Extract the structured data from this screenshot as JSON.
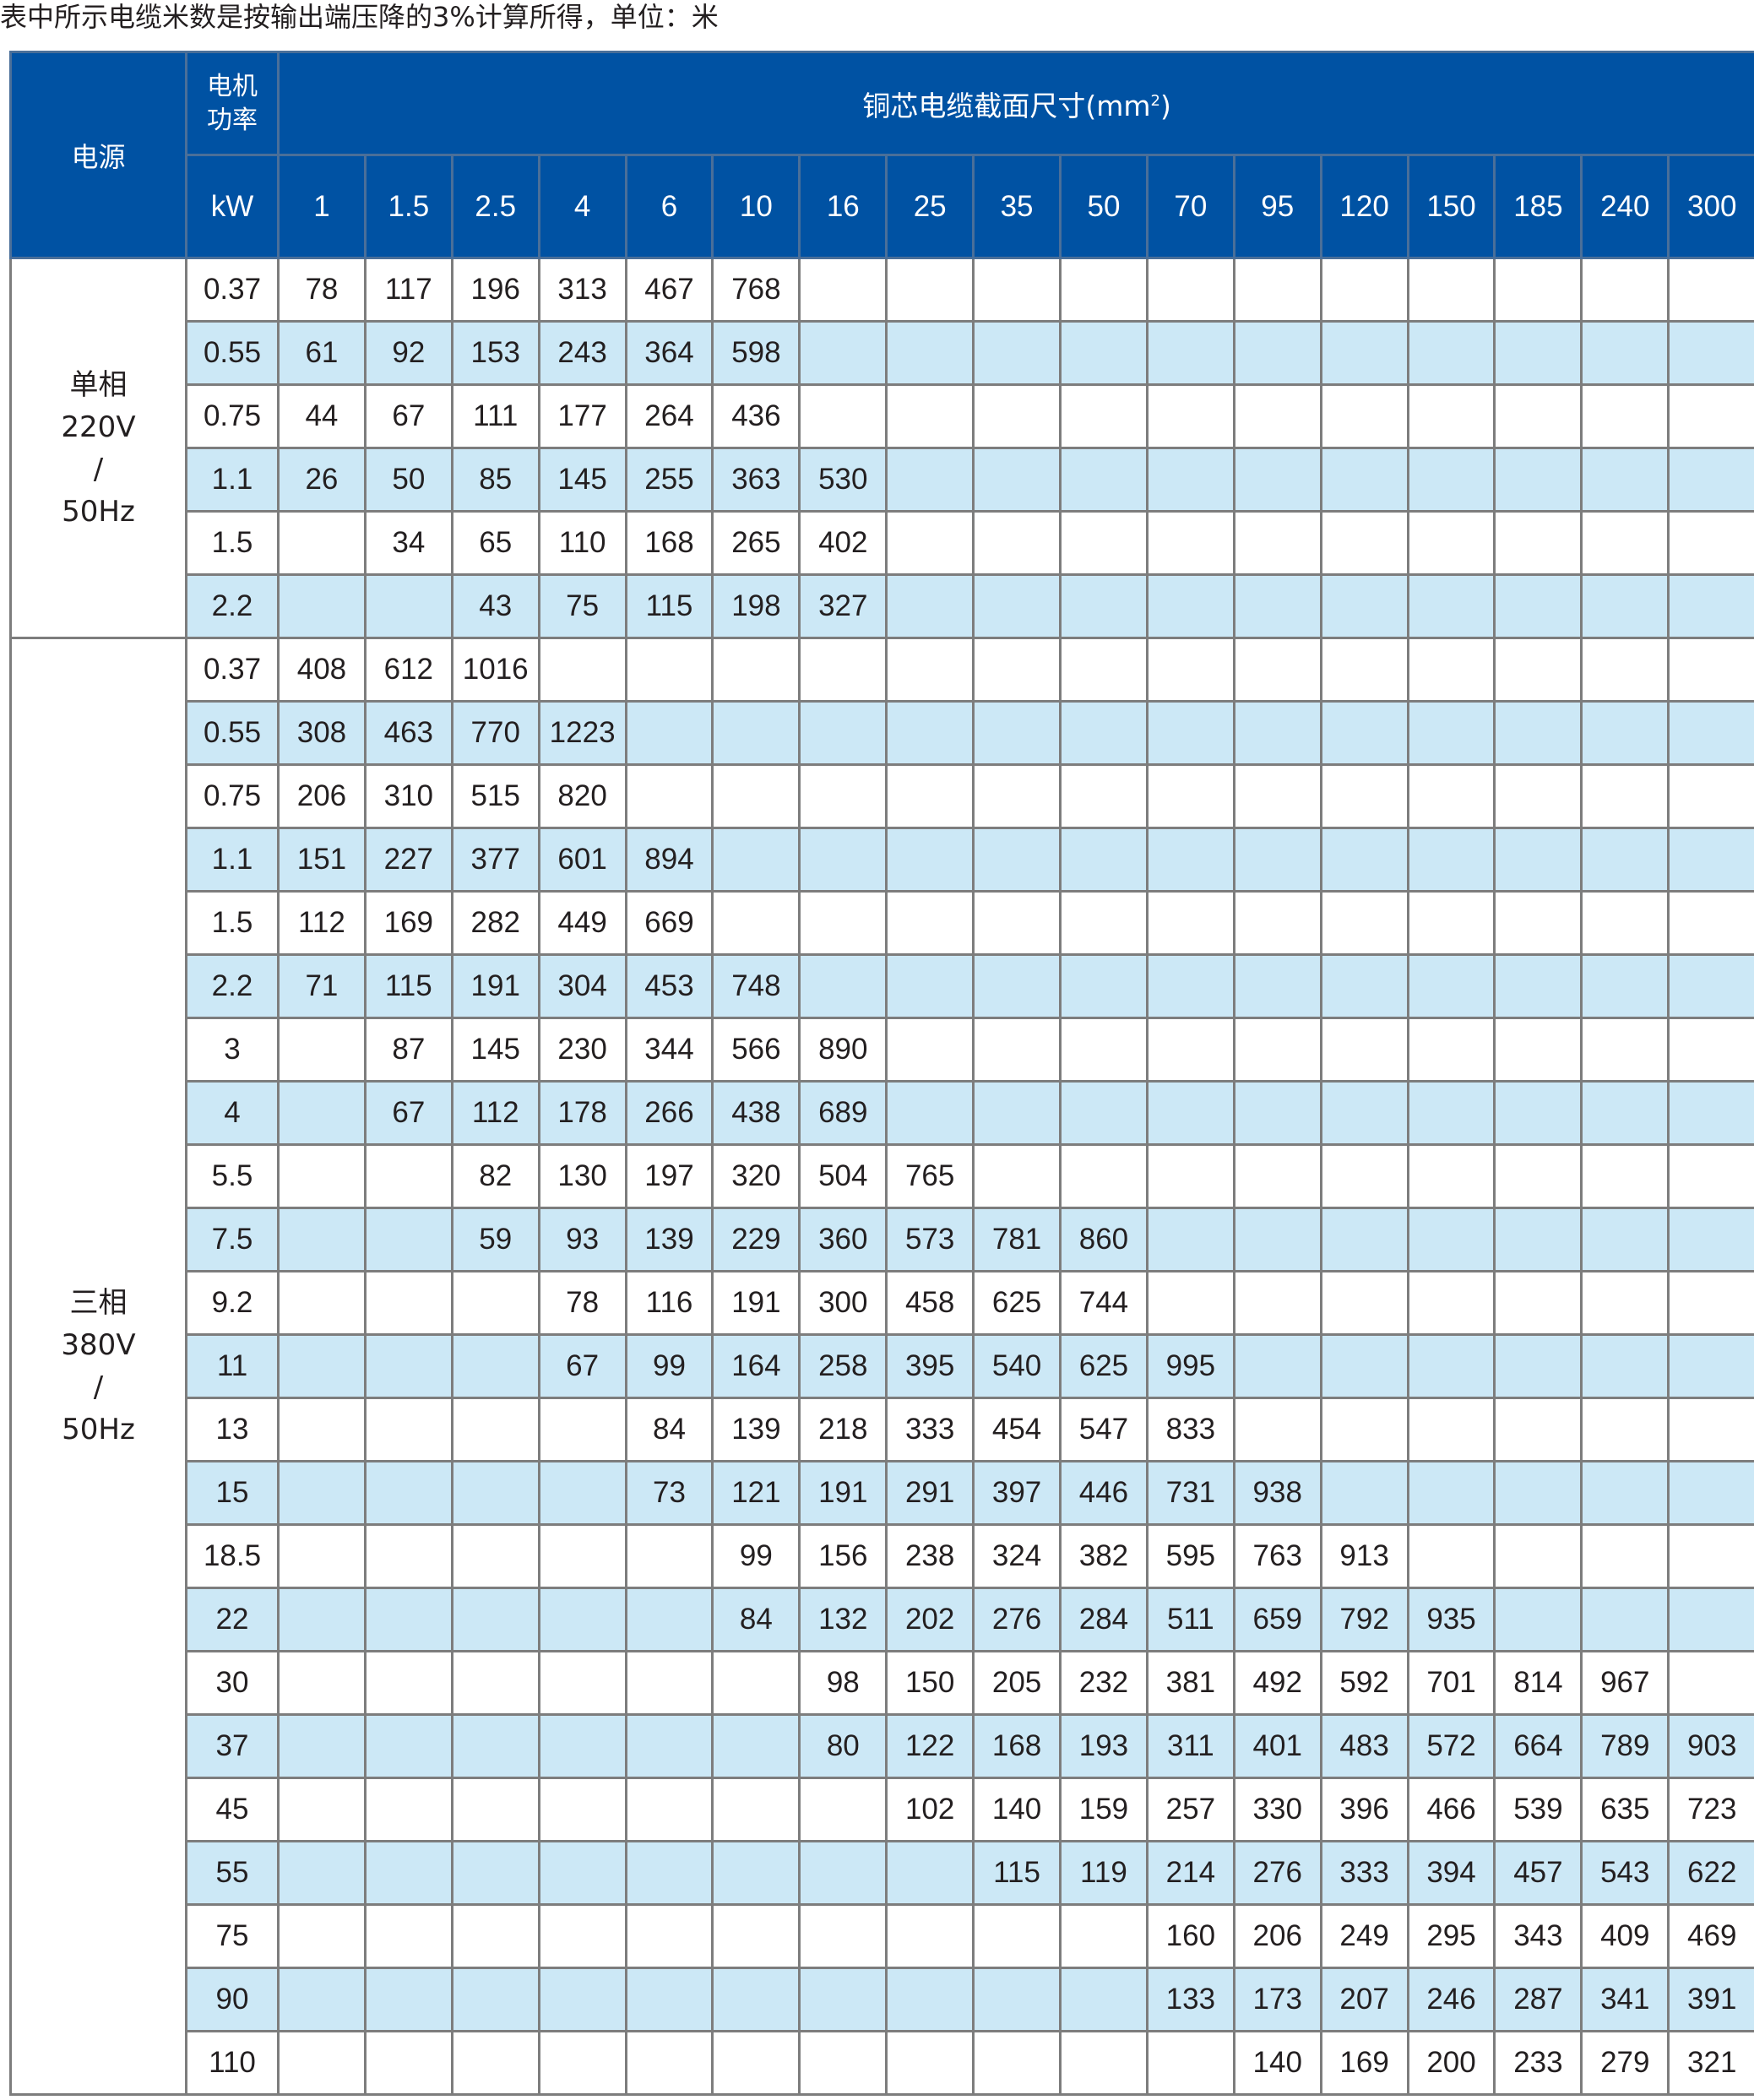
{
  "caption": "表中所示电缆米数是按输出端压降的3%计算所得，单位：米",
  "colors": {
    "header_bg": "#0052a3",
    "alt_row_bg": "#cce8f6",
    "border": "#7d7d7d"
  },
  "header": {
    "power_source": "电源",
    "motor_power": [
      "电机",
      "功率"
    ],
    "cross_section": "铜芯电缆截面尺寸(mm",
    "cross_section_sup": "2",
    "cross_section_close": ")",
    "kw": "kW",
    "sizes": [
      "1",
      "1.5",
      "2.5",
      "4",
      "6",
      "10",
      "16",
      "25",
      "35",
      "50",
      "70",
      "95",
      "120",
      "150",
      "185",
      "240",
      "300"
    ]
  },
  "groups": [
    {
      "label": [
        "单相",
        "220V",
        "/",
        "50Hz"
      ],
      "rows": [
        {
          "kw": "0.37",
          "v": [
            "78",
            "117",
            "196",
            "313",
            "467",
            "768",
            "",
            "",
            "",
            "",
            "",
            "",
            "",
            "",
            "",
            "",
            ""
          ]
        },
        {
          "kw": "0.55",
          "v": [
            "61",
            "92",
            "153",
            "243",
            "364",
            "598",
            "",
            "",
            "",
            "",
            "",
            "",
            "",
            "",
            "",
            "",
            ""
          ]
        },
        {
          "kw": "0.75",
          "v": [
            "44",
            "67",
            "111",
            "177",
            "264",
            "436",
            "",
            "",
            "",
            "",
            "",
            "",
            "",
            "",
            "",
            "",
            ""
          ]
        },
        {
          "kw": "1.1",
          "v": [
            "26",
            "50",
            "85",
            "145",
            "255",
            "363",
            "530",
            "",
            "",
            "",
            "",
            "",
            "",
            "",
            "",
            "",
            ""
          ]
        },
        {
          "kw": "1.5",
          "v": [
            "",
            "34",
            "65",
            "110",
            "168",
            "265",
            "402",
            "",
            "",
            "",
            "",
            "",
            "",
            "",
            "",
            "",
            ""
          ]
        },
        {
          "kw": "2.2",
          "v": [
            "",
            "",
            "43",
            "75",
            "115",
            "198",
            "327",
            "",
            "",
            "",
            "",
            "",
            "",
            "",
            "",
            "",
            ""
          ]
        }
      ]
    },
    {
      "label": [
        "三相",
        "380V",
        "/",
        "50Hz"
      ],
      "rows": [
        {
          "kw": "0.37",
          "v": [
            "408",
            "612",
            "1016",
            "",
            "",
            "",
            "",
            "",
            "",
            "",
            "",
            "",
            "",
            "",
            "",
            "",
            ""
          ]
        },
        {
          "kw": "0.55",
          "v": [
            "308",
            "463",
            "770",
            "1223",
            "",
            "",
            "",
            "",
            "",
            "",
            "",
            "",
            "",
            "",
            "",
            "",
            ""
          ]
        },
        {
          "kw": "0.75",
          "v": [
            "206",
            "310",
            "515",
            "820",
            "",
            "",
            "",
            "",
            "",
            "",
            "",
            "",
            "",
            "",
            "",
            "",
            ""
          ]
        },
        {
          "kw": "1.1",
          "v": [
            "151",
            "227",
            "377",
            "601",
            "894",
            "",
            "",
            "",
            "",
            "",
            "",
            "",
            "",
            "",
            "",
            "",
            ""
          ]
        },
        {
          "kw": "1.5",
          "v": [
            "112",
            "169",
            "282",
            "449",
            "669",
            "",
            "",
            "",
            "",
            "",
            "",
            "",
            "",
            "",
            "",
            "",
            ""
          ]
        },
        {
          "kw": "2.2",
          "v": [
            "71",
            "115",
            "191",
            "304",
            "453",
            "748",
            "",
            "",
            "",
            "",
            "",
            "",
            "",
            "",
            "",
            "",
            ""
          ]
        },
        {
          "kw": "3",
          "v": [
            "",
            "87",
            "145",
            "230",
            "344",
            "566",
            "890",
            "",
            "",
            "",
            "",
            "",
            "",
            "",
            "",
            "",
            ""
          ]
        },
        {
          "kw": "4",
          "v": [
            "",
            "67",
            "112",
            "178",
            "266",
            "438",
            "689",
            "",
            "",
            "",
            "",
            "",
            "",
            "",
            "",
            "",
            ""
          ]
        },
        {
          "kw": "5.5",
          "v": [
            "",
            "",
            "82",
            "130",
            "197",
            "320",
            "504",
            "765",
            "",
            "",
            "",
            "",
            "",
            "",
            "",
            "",
            ""
          ]
        },
        {
          "kw": "7.5",
          "v": [
            "",
            "",
            "59",
            "93",
            "139",
            "229",
            "360",
            "573",
            "781",
            "860",
            "",
            "",
            "",
            "",
            "",
            "",
            ""
          ]
        },
        {
          "kw": "9.2",
          "v": [
            "",
            "",
            "",
            "78",
            "116",
            "191",
            "300",
            "458",
            "625",
            "744",
            "",
            "",
            "",
            "",
            "",
            "",
            ""
          ]
        },
        {
          "kw": "11",
          "v": [
            "",
            "",
            "",
            "67",
            "99",
            "164",
            "258",
            "395",
            "540",
            "625",
            "995",
            "",
            "",
            "",
            "",
            "",
            ""
          ]
        },
        {
          "kw": "13",
          "v": [
            "",
            "",
            "",
            "",
            "84",
            "139",
            "218",
            "333",
            "454",
            "547",
            "833",
            "",
            "",
            "",
            "",
            "",
            ""
          ]
        },
        {
          "kw": "15",
          "v": [
            "",
            "",
            "",
            "",
            "73",
            "121",
            "191",
            "291",
            "397",
            "446",
            "731",
            "938",
            "",
            "",
            "",
            "",
            ""
          ]
        },
        {
          "kw": "18.5",
          "v": [
            "",
            "",
            "",
            "",
            "",
            "99",
            "156",
            "238",
            "324",
            "382",
            "595",
            "763",
            "913",
            "",
            "",
            "",
            ""
          ]
        },
        {
          "kw": "22",
          "v": [
            "",
            "",
            "",
            "",
            "",
            "84",
            "132",
            "202",
            "276",
            "284",
            "511",
            "659",
            "792",
            "935",
            "",
            "",
            ""
          ]
        },
        {
          "kw": "30",
          "v": [
            "",
            "",
            "",
            "",
            "",
            "",
            "98",
            "150",
            "205",
            "232",
            "381",
            "492",
            "592",
            "701",
            "814",
            "967",
            ""
          ]
        },
        {
          "kw": "37",
          "v": [
            "",
            "",
            "",
            "",
            "",
            "",
            "80",
            "122",
            "168",
            "193",
            "311",
            "401",
            "483",
            "572",
            "664",
            "789",
            "903"
          ]
        },
        {
          "kw": "45",
          "v": [
            "",
            "",
            "",
            "",
            "",
            "",
            "",
            "102",
            "140",
            "159",
            "257",
            "330",
            "396",
            "466",
            "539",
            "635",
            "723"
          ]
        },
        {
          "kw": "55",
          "v": [
            "",
            "",
            "",
            "",
            "",
            "",
            "",
            "",
            "115",
            "119",
            "214",
            "276",
            "333",
            "394",
            "457",
            "543",
            "622"
          ]
        },
        {
          "kw": "75",
          "v": [
            "",
            "",
            "",
            "",
            "",
            "",
            "",
            "",
            "",
            "",
            "160",
            "206",
            "249",
            "295",
            "343",
            "409",
            "469"
          ]
        },
        {
          "kw": "90",
          "v": [
            "",
            "",
            "",
            "",
            "",
            "",
            "",
            "",
            "",
            "",
            "133",
            "173",
            "207",
            "246",
            "287",
            "341",
            "391"
          ]
        },
        {
          "kw": "110",
          "v": [
            "",
            "",
            "",
            "",
            "",
            "",
            "",
            "",
            "",
            "",
            "",
            "140",
            "169",
            "200",
            "233",
            "279",
            "321"
          ]
        }
      ]
    }
  ]
}
